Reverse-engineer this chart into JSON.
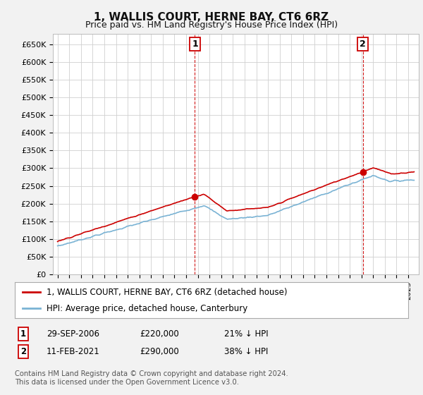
{
  "title": "1, WALLIS COURT, HERNE BAY, CT6 6RZ",
  "subtitle": "Price paid vs. HM Land Registry's House Price Index (HPI)",
  "ytick_labels": [
    "£0",
    "£50K",
    "£100K",
    "£150K",
    "£200K",
    "£250K",
    "£300K",
    "£350K",
    "£400K",
    "£450K",
    "£500K",
    "£550K",
    "£600K",
    "£650K"
  ],
  "yticks": [
    0,
    50000,
    100000,
    150000,
    200000,
    250000,
    300000,
    350000,
    400000,
    450000,
    500000,
    550000,
    600000,
    650000
  ],
  "hpi_color": "#7ab3d4",
  "price_color": "#cc0000",
  "dashed_color": "#cc0000",
  "bg_color": "#f2f2f2",
  "plot_bg": "#ffffff",
  "legend_line1": "1, WALLIS COURT, HERNE BAY, CT6 6RZ (detached house)",
  "legend_line2": "HPI: Average price, detached house, Canterbury",
  "footer": "Contains HM Land Registry data © Crown copyright and database right 2024.\nThis data is licensed under the Open Government Licence v3.0.",
  "transaction1_x": 2006.75,
  "transaction1_y": 220000,
  "transaction2_x": 2021.12,
  "transaction2_y": 290000,
  "xlim_left": 1994.6,
  "xlim_right": 2025.9,
  "ylim_top": 680000,
  "x_start": 1995,
  "x_end": 2025
}
